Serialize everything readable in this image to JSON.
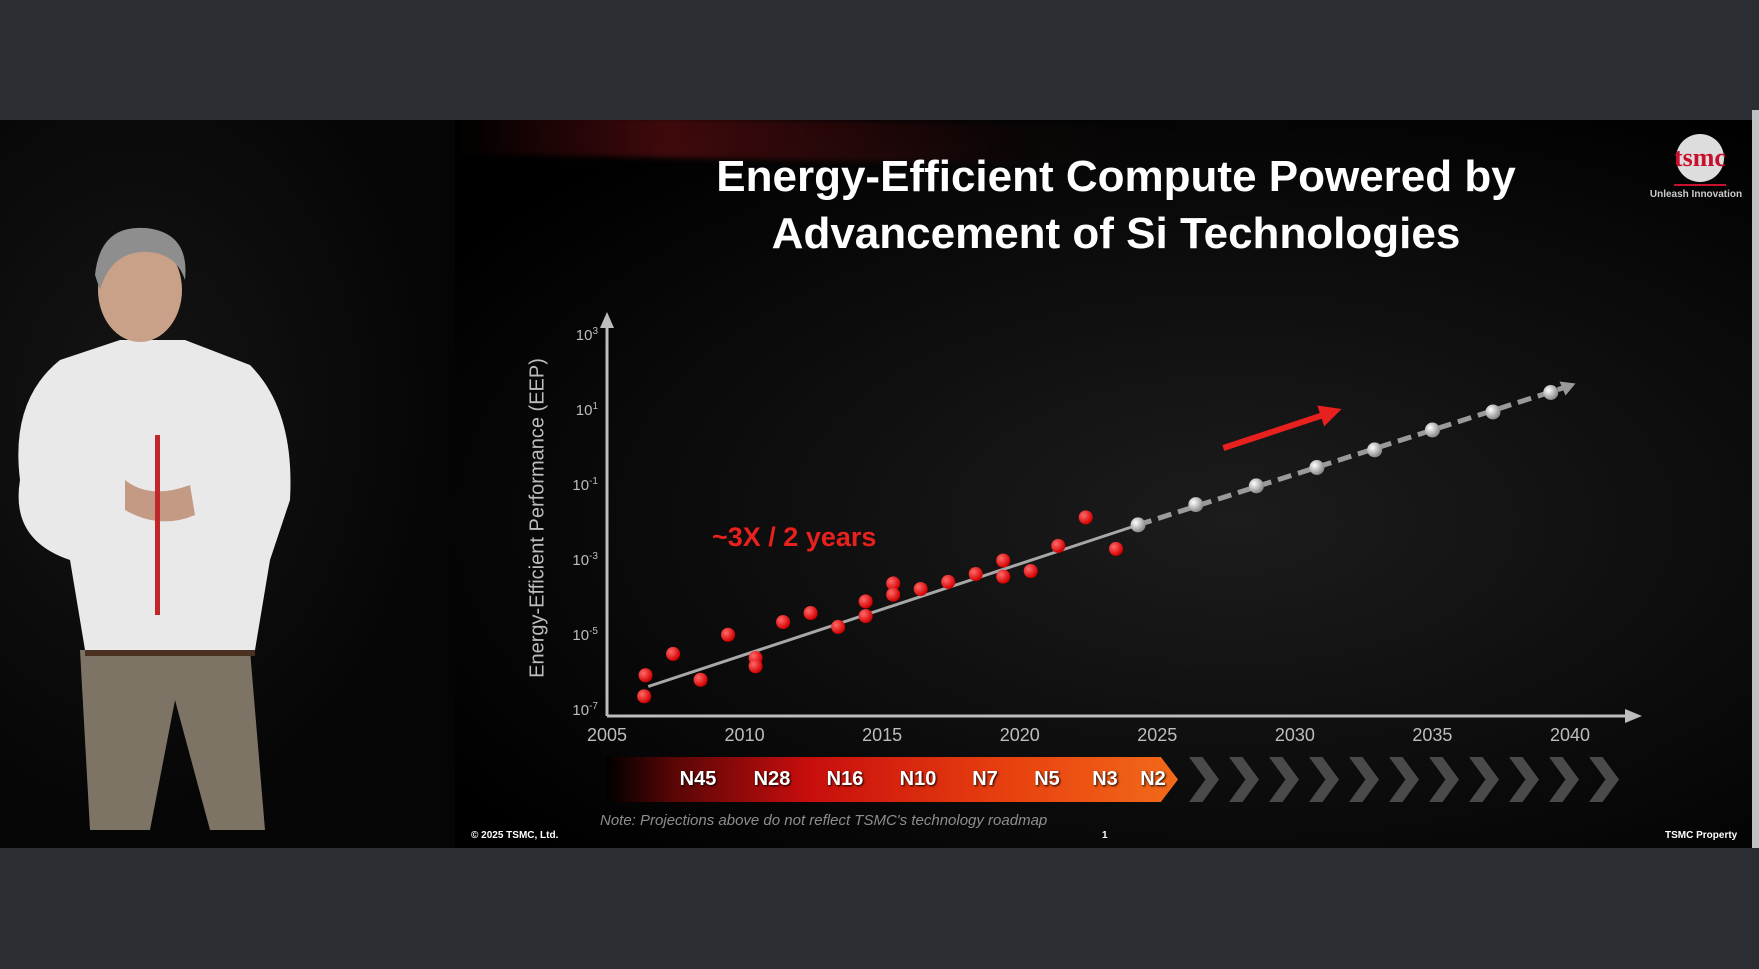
{
  "slide": {
    "title_line1": "Energy-Efficient Compute Powered by",
    "title_line2": "Advancement of Si Technologies",
    "logo_text": "tsmc",
    "tagline": "Unleash Innovation",
    "annotation": "~3X / 2 years",
    "note": "Note: Projections above do not reflect TSMC's technology roadmap",
    "copyright": "© 2025 TSMC, Ltd.",
    "page_number": "1",
    "property": "TSMC Property",
    "roadmap_nodes": [
      "N45",
      "N28",
      "N16",
      "N10",
      "N7",
      "N5",
      "N3",
      "N2"
    ],
    "colors": {
      "accent_red": "#e8201e",
      "projection_gray": "#bdbdbd",
      "roadmap_orange": "#f26a1a"
    }
  },
  "chart_data": {
    "type": "scatter",
    "ylabel": "Energy-Efficient Performance (EEP)",
    "xlabel": "",
    "xlim": [
      2005,
      2040
    ],
    "ylim_log10": [
      -7,
      3
    ],
    "y_scale": "log",
    "x_ticks": [
      "2005",
      "2010",
      "2015",
      "2020",
      "2025",
      "2030",
      "2035",
      "2040"
    ],
    "y_ticks": [
      {
        "base": "10",
        "exp": "3"
      },
      {
        "base": "10",
        "exp": "1"
      },
      {
        "base": "10",
        "exp": "-1"
      },
      {
        "base": "10",
        "exp": "-3"
      },
      {
        "base": "10",
        "exp": "-5"
      },
      {
        "base": "10",
        "exp": "-7"
      }
    ],
    "historical_points_log10": [
      [
        2006.4,
        -6.1
      ],
      [
        2006.35,
        -6.66
      ],
      [
        2007.4,
        -5.53
      ],
      [
        2008.4,
        -6.22
      ],
      [
        2009.4,
        -5.02
      ],
      [
        2010.4,
        -5.64
      ],
      [
        2010.4,
        -5.86
      ],
      [
        2011.4,
        -4.68
      ],
      [
        2012.4,
        -4.44
      ],
      [
        2013.4,
        -4.81
      ],
      [
        2014.4,
        -4.13
      ],
      [
        2014.4,
        -4.52
      ],
      [
        2015.4,
        -3.65
      ],
      [
        2015.4,
        -3.95
      ],
      [
        2016.4,
        -3.8
      ],
      [
        2017.4,
        -3.61
      ],
      [
        2018.4,
        -3.4
      ],
      [
        2019.4,
        -3.04
      ],
      [
        2019.4,
        -3.47
      ],
      [
        2020.4,
        -3.32
      ],
      [
        2021.4,
        -2.65
      ],
      [
        2022.4,
        -1.89
      ],
      [
        2023.5,
        -2.73
      ]
    ],
    "trend_line_log10": [
      [
        2006.5,
        -6.4
      ],
      [
        2024.3,
        -2.09
      ]
    ],
    "projected_points_log10": [
      [
        2024.3,
        -2.09
      ],
      [
        2026.4,
        -1.55
      ],
      [
        2028.6,
        -1.05
      ],
      [
        2030.8,
        -0.56
      ],
      [
        2032.9,
        -0.09
      ],
      [
        2035.0,
        0.44
      ],
      [
        2037.2,
        0.92
      ],
      [
        2039.3,
        1.44
      ]
    ],
    "projection_end_log10": [
      2040.2,
      1.68
    ],
    "trend_arrow_log10": [
      [
        2027.4,
        -0.04
      ],
      [
        2031.7,
        1.0
      ]
    ],
    "grid": false
  }
}
